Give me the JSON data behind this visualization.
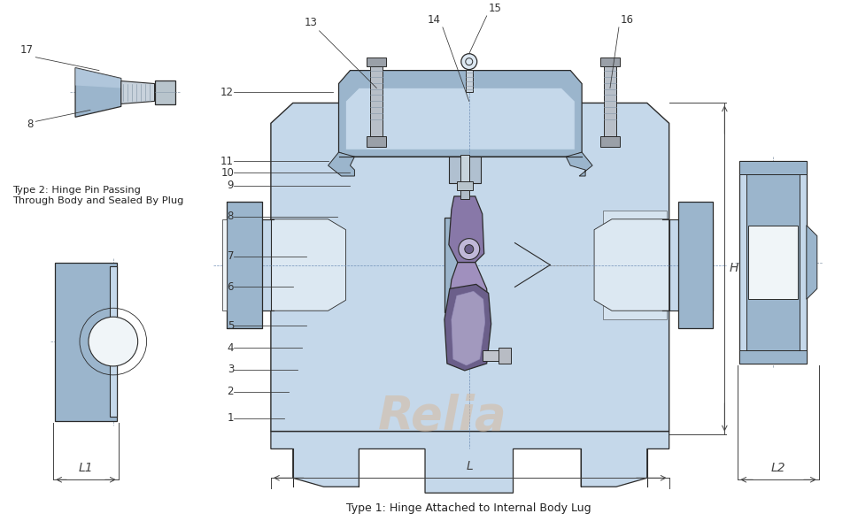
{
  "bg_color": "#ffffff",
  "lc": "#2a2a2a",
  "blue_light": "#c5d8ea",
  "blue_mid": "#9bb5cc",
  "blue_dark": "#6e8fa8",
  "blue_pale": "#dce8f2",
  "purple_dark": "#6b5f8a",
  "purple_mid": "#8878a8",
  "purple_light": "#a090be",
  "grey_stud": "#b8bfc8",
  "grey_nut": "#9aa0a8",
  "white_bore": "#f0f5f8",
  "relia_color": "#d8b898",
  "dim_color": "#444444",
  "label_color": "#333333",
  "text_color": "#222222",
  "title_type1": "Type 1: Hinge Attached to Internal Body Lug",
  "title_type2": "Type 2: Hinge Pin Passing\nThrough Body and Sealed By Plug",
  "label_L": "L",
  "label_L1": "L1",
  "label_L2": "L2",
  "label_H": "H",
  "relia_text": "Relia"
}
